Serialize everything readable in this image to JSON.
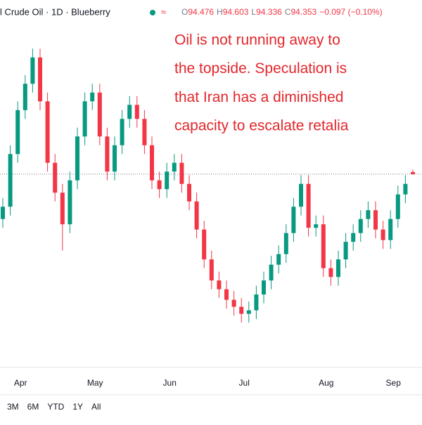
{
  "chart_data": {
    "type": "candlestick",
    "title": "l Crude Oil · 1D · Blueberry",
    "ohlc_labels": [
      "O",
      "H",
      "L",
      "C"
    ],
    "change": "−0.097 (−0.10%)",
    "annotation": [
      "Oil is not running away to",
      "the topside. Speculation is",
      "that Iran has a diminished",
      "capacity to escalate retalia"
    ],
    "categories": [
      null,
      null,
      "Apr",
      null,
      null,
      null,
      null,
      null,
      null,
      null,
      null,
      null,
      "May",
      null,
      null,
      null,
      null,
      null,
      null,
      null,
      null,
      null,
      "Jun",
      null,
      null,
      null,
      null,
      null,
      null,
      null,
      null,
      null,
      "Jul",
      null,
      null,
      null,
      null,
      null,
      null,
      null,
      null,
      null,
      null,
      "Aug",
      null,
      null,
      null,
      null,
      null,
      null,
      null,
      null,
      "Sep",
      null,
      null,
      null
    ],
    "open": [
      91.8,
      92.5,
      95.5,
      98.0,
      99.5,
      101.0,
      98.5,
      95.0,
      93.3,
      91.5,
      94.0,
      96.5,
      98.5,
      99.0,
      96.5,
      94.5,
      96.0,
      97.5,
      98.3,
      97.5,
      96.0,
      94.0,
      93.5,
      94.5,
      95.0,
      93.8,
      92.8,
      91.2,
      89.5,
      88.3,
      87.8,
      87.2,
      86.8,
      86.4,
      86.6,
      87.5,
      88.3,
      89.2,
      89.8,
      91.0,
      92.5,
      93.8,
      91.3,
      91.5,
      89.0,
      88.5,
      89.5,
      90.5,
      91.0,
      91.8,
      92.3,
      91.2,
      90.6,
      91.8,
      93.2,
      94.476
    ],
    "high": [
      93.0,
      96.0,
      98.5,
      100.0,
      101.5,
      101.5,
      99.0,
      95.5,
      93.8,
      94.5,
      97.0,
      99.0,
      99.5,
      99.5,
      97.0,
      96.5,
      98.0,
      98.8,
      98.8,
      98.0,
      96.5,
      94.5,
      95.0,
      95.5,
      95.5,
      94.3,
      93.3,
      91.7,
      90.0,
      88.8,
      88.3,
      87.7,
      87.3,
      87.1,
      88.0,
      88.8,
      89.7,
      90.3,
      91.5,
      93.0,
      94.3,
      94.3,
      92.0,
      92.0,
      89.5,
      90.0,
      91.0,
      91.5,
      92.3,
      92.8,
      92.8,
      91.7,
      92.3,
      93.7,
      94.3,
      94.603
    ],
    "low": [
      91.3,
      92.0,
      95.0,
      97.5,
      99.0,
      98.0,
      94.5,
      92.8,
      90.0,
      91.0,
      93.5,
      96.0,
      98.0,
      96.0,
      94.0,
      94.0,
      95.5,
      97.0,
      97.0,
      95.5,
      93.5,
      93.0,
      93.0,
      94.0,
      93.3,
      92.3,
      90.7,
      89.0,
      87.8,
      87.3,
      86.7,
      86.3,
      85.9,
      85.9,
      86.1,
      87.0,
      87.8,
      88.7,
      89.3,
      90.5,
      92.0,
      90.8,
      90.8,
      88.5,
      88.0,
      88.0,
      89.0,
      90.0,
      90.5,
      91.3,
      90.7,
      90.1,
      90.1,
      91.3,
      92.7,
      94.336
    ],
    "close": [
      92.5,
      95.5,
      98.0,
      99.5,
      101.0,
      98.5,
      95.0,
      93.3,
      91.5,
      94.0,
      96.5,
      98.5,
      99.0,
      96.5,
      94.5,
      96.0,
      97.5,
      98.3,
      97.5,
      96.0,
      94.0,
      93.5,
      94.5,
      95.0,
      93.8,
      92.8,
      91.2,
      89.5,
      88.3,
      87.8,
      87.2,
      86.8,
      86.4,
      86.6,
      87.5,
      88.3,
      89.2,
      89.8,
      91.0,
      92.5,
      93.8,
      91.3,
      91.5,
      89.0,
      88.5,
      89.5,
      90.5,
      91.0,
      91.8,
      92.3,
      91.2,
      90.6,
      91.8,
      93.2,
      93.8,
      94.353
    ],
    "up_color": "#089981",
    "down_color": "#f23645",
    "ylim": [
      83.47,
      104.27
    ],
    "last_price_line": true
  },
  "toolbar": {
    "ranges": [
      "3M",
      "6M",
      "YTD",
      "1Y",
      "All"
    ]
  }
}
